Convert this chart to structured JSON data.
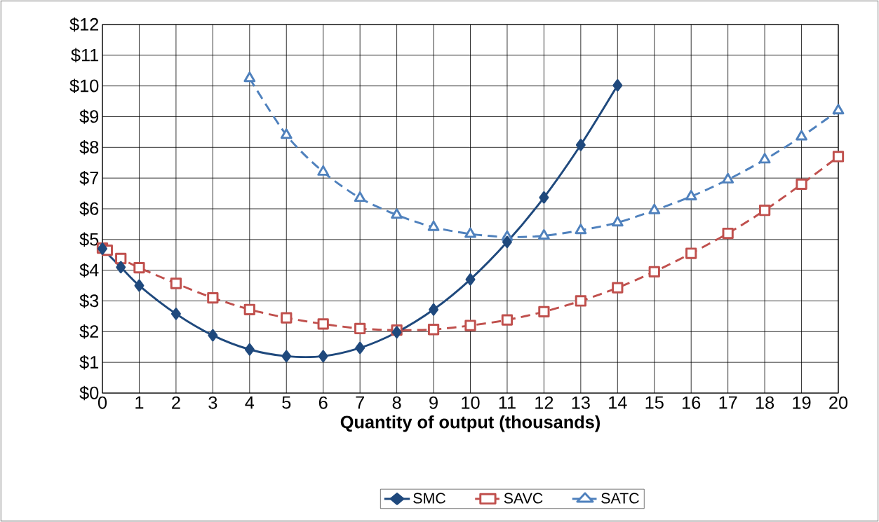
{
  "chart_data": {
    "type": "line",
    "xlabel": "Quantity of output (thousands)",
    "xlim": [
      0,
      20
    ],
    "ylim": [
      0,
      12
    ],
    "xticks": [
      0,
      1,
      2,
      3,
      4,
      5,
      6,
      7,
      8,
      9,
      10,
      11,
      12,
      13,
      14,
      15,
      16,
      17,
      18,
      19,
      20
    ],
    "yticks": [
      {
        "value": 0,
        "label": "$0"
      },
      {
        "value": 1,
        "label": "$1"
      },
      {
        "value": 2,
        "label": "$2"
      },
      {
        "value": 3,
        "label": "$3"
      },
      {
        "value": 4,
        "label": "$4"
      },
      {
        "value": 5,
        "label": "$5"
      },
      {
        "value": 6,
        "label": "$6"
      },
      {
        "value": 7,
        "label": "$7"
      },
      {
        "value": 8,
        "label": "$8"
      },
      {
        "value": 9,
        "label": "$9"
      },
      {
        "value": 10,
        "label": "$10"
      },
      {
        "value": 11,
        "label": "$11"
      },
      {
        "value": 12,
        "label": "$12"
      }
    ],
    "grid": true,
    "legend": "bottom",
    "series": [
      {
        "name": "SMC",
        "color": "#1f497d",
        "marker": "diamond",
        "line_style": "solid",
        "x": [
          0,
          0.5,
          1,
          2,
          3,
          4,
          5,
          6,
          7,
          8,
          9,
          10,
          11,
          12,
          13,
          14
        ],
        "values": [
          4.7,
          4.1,
          3.5,
          2.58,
          1.88,
          1.42,
          1.2,
          1.2,
          1.47,
          1.98,
          2.72,
          3.7,
          4.92,
          6.37,
          8.08,
          10.02
        ]
      },
      {
        "name": "SAVC",
        "color": "#c0504d",
        "marker": "square",
        "line_style": "dashed",
        "x": [
          0,
          0.13,
          0.5,
          1,
          2,
          3,
          4,
          5,
          6,
          7,
          8,
          9,
          10,
          11,
          12,
          13,
          14,
          15,
          16,
          17,
          18,
          19,
          20
        ],
        "values": [
          4.72,
          4.65,
          4.38,
          4.08,
          3.57,
          3.1,
          2.72,
          2.45,
          2.25,
          2.1,
          2.05,
          2.07,
          2.2,
          2.38,
          2.65,
          3.0,
          3.43,
          3.95,
          4.55,
          5.2,
          5.95,
          6.8,
          7.7
        ]
      },
      {
        "name": "SATC",
        "color": "#4f81bd",
        "marker": "triangle",
        "line_style": "dashed",
        "x": [
          4,
          5,
          6,
          7,
          8,
          9,
          10,
          11,
          12,
          13,
          14,
          15,
          16,
          17,
          18,
          19,
          20
        ],
        "values": [
          10.25,
          8.4,
          7.2,
          6.35,
          5.8,
          5.4,
          5.18,
          5.08,
          5.12,
          5.3,
          5.55,
          5.95,
          6.4,
          6.95,
          7.6,
          8.35,
          9.2
        ]
      }
    ]
  }
}
